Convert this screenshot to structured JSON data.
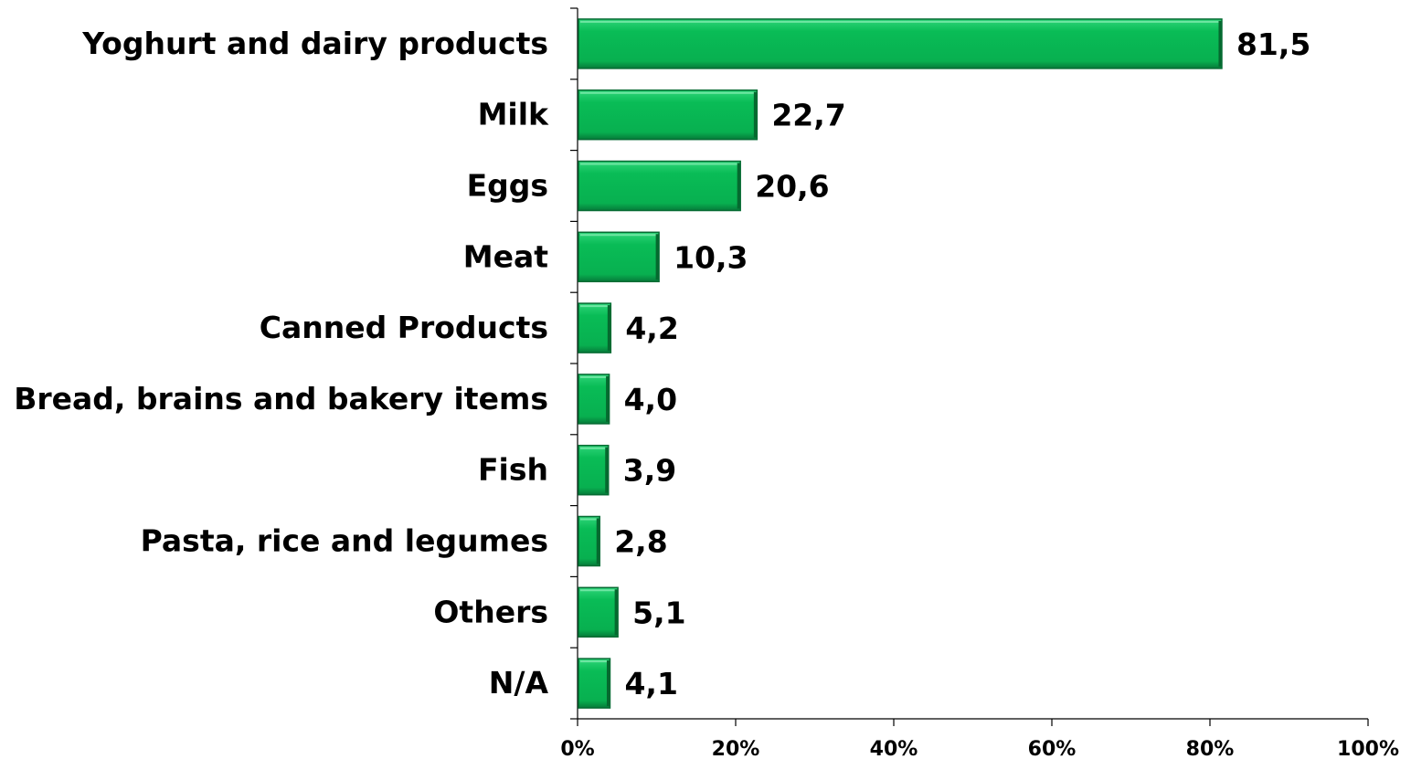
{
  "chart_data": {
    "type": "bar",
    "orientation": "horizontal",
    "categories": [
      "Yoghurt and dairy products",
      "Milk",
      "Eggs",
      "Meat",
      "Canned Products",
      "Bread, brains and bakery items",
      "Fish",
      "Pasta, rice and legumes",
      "Others",
      "N/A"
    ],
    "values": [
      81.5,
      22.7,
      20.6,
      10.3,
      4.2,
      4.0,
      3.9,
      2.8,
      5.1,
      4.1
    ],
    "value_labels": [
      "81,5",
      "22,7",
      "20,6",
      "10,3",
      "4,2",
      "4,0",
      "3,9",
      "2,8",
      "5,1",
      "4,1"
    ],
    "title": "",
    "xlabel": "",
    "ylabel": "",
    "xlim": [
      0,
      100
    ],
    "x_ticks": [
      0,
      20,
      40,
      60,
      80,
      100
    ],
    "x_tick_labels": [
      "0%",
      "20%",
      "40%",
      "60%",
      "80%",
      "100%"
    ],
    "grid": false,
    "legend": "none",
    "bar_color": "#09BC56",
    "bar_edge_color": "#066B33"
  }
}
